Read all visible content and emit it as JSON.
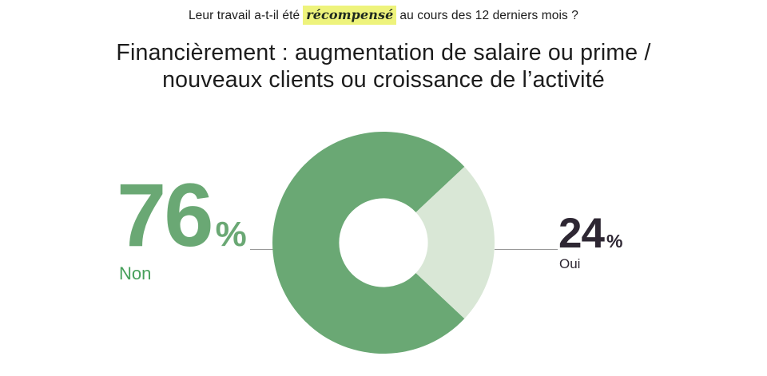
{
  "question": {
    "prefix": "Leur travail a-t-il été",
    "highlight": "récompensé",
    "suffix": "au cours des 12 derniers mois ?"
  },
  "title": {
    "line1": "Financièrement : augmentation de salaire ou prime /",
    "line2": "nouveaux clients ou croissance de l’activité"
  },
  "chart_data": {
    "type": "pie",
    "subtype": "donut",
    "question": "Leur travail a-t-il été récompensé au cours des 12 derniers mois ?",
    "title": "Financièrement : augmentation de salaire ou prime / nouveaux clients ou croissance de l’activité",
    "unit": "%",
    "slices": [
      {
        "label": "Non",
        "value": 76,
        "color": "#6aa874",
        "value_color": "#6aa874",
        "label_color": "#47a05b",
        "side": "left"
      },
      {
        "label": "Oui",
        "value": 24,
        "color": "#d9e7d6",
        "value_color": "#2e2733",
        "label_color": "#2e2733",
        "side": "right"
      }
    ],
    "donut_hole_ratio": 0.4,
    "oui_center_angle_deg": 90,
    "legend_position": "sides-with-connector-lines",
    "connector_line_color": "#999999"
  },
  "colors": {
    "background": "#ffffff",
    "question_text": "#1c1c1c",
    "title_text": "#1c1c1c",
    "highlight_bg": "#eef37c",
    "highlight_text": "#1f2a1f"
  }
}
